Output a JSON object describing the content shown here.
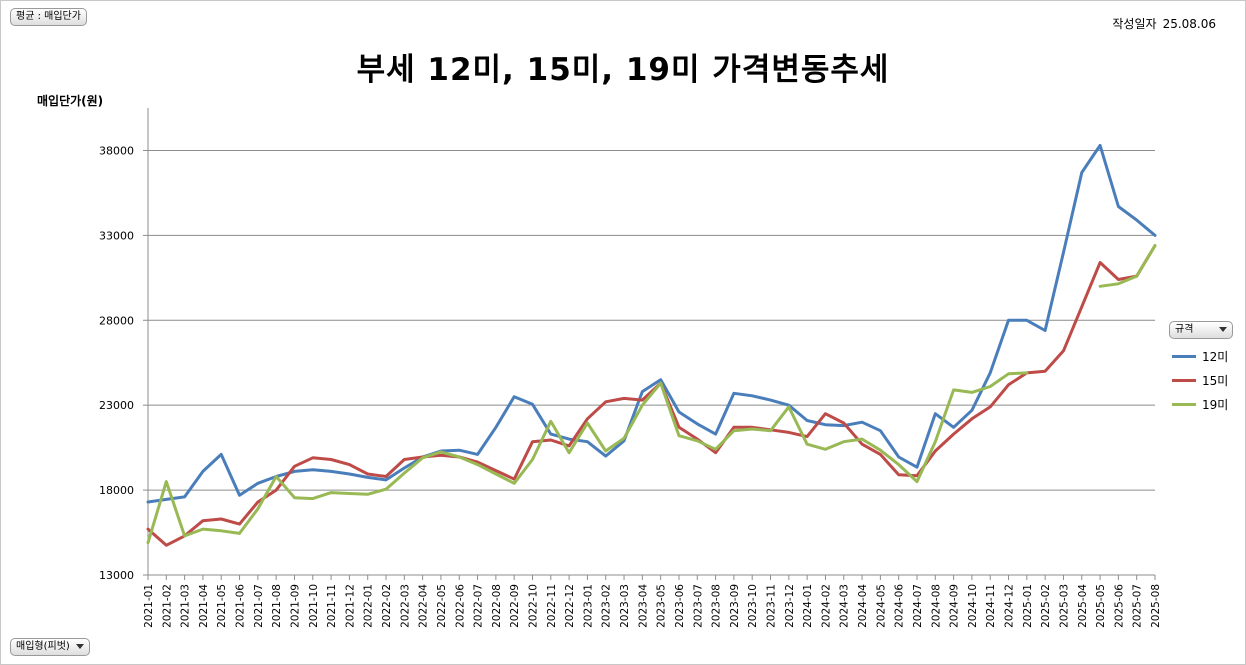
{
  "filter": {
    "label": "평균 : 매입단가"
  },
  "created": {
    "label": "작성일자",
    "date": "25.08.06"
  },
  "legend_filter": {
    "label": "규격"
  },
  "row_filter": {
    "label": "매입형(피벗)"
  },
  "chart_data": {
    "type": "line",
    "title": "부세 12미, 15미, 19미 가격변동추세",
    "ylabel": "매입단가(원)",
    "xlabel": "",
    "ylim": [
      13000,
      40500
    ],
    "yticks": [
      13000,
      18000,
      23000,
      28000,
      33000,
      38000
    ],
    "grid": true,
    "legend_position": "right",
    "categories": [
      "2021-01",
      "2021-02",
      "2021-03",
      "2021-04",
      "2021-05",
      "2021-06",
      "2021-07",
      "2021-08",
      "2021-09",
      "2021-10",
      "2021-11",
      "2021-12",
      "2022-01",
      "2022-02",
      "2022-03",
      "2022-04",
      "2022-05",
      "2022-06",
      "2022-07",
      "2022-08",
      "2022-09",
      "2022-10",
      "2022-11",
      "2022-12",
      "2023-01",
      "2023-02",
      "2023-03",
      "2023-04",
      "2023-05",
      "2023-06",
      "2023-07",
      "2023-08",
      "2023-09",
      "2023-10",
      "2023-11",
      "2023-12",
      "2024-01",
      "2024-02",
      "2024-03",
      "2024-04",
      "2024-05",
      "2024-06",
      "2024-07",
      "2024-08",
      "2024-09",
      "2024-10",
      "2024-11",
      "2024-12",
      "2025-01",
      "2025-02",
      "2025-03",
      "2025-04",
      "2025-05",
      "2025-06",
      "2025-07",
      "2025-08"
    ],
    "series": [
      {
        "name": "12미",
        "color": "#4a7ebb",
        "values": [
          17300,
          17450,
          17600,
          19100,
          20100,
          17700,
          18400,
          18800,
          19100,
          19200,
          19100,
          18950,
          18750,
          18600,
          19300,
          19950,
          20300,
          20350,
          20100,
          21700,
          23500,
          23050,
          21300,
          21000,
          20850,
          20000,
          20900,
          23800,
          24500,
          22600,
          21900,
          21300,
          23700,
          23550,
          23300,
          23000,
          22100,
          21850,
          21800,
          22000,
          21500,
          19950,
          19350,
          22500,
          21700,
          22700,
          24900,
          28000,
          28000,
          27400,
          32000,
          36700,
          38300,
          34700,
          33900,
          33000
        ]
      },
      {
        "name": "15미",
        "color": "#be4b48",
        "values": [
          15700,
          14750,
          15300,
          16200,
          16300,
          16000,
          17300,
          18000,
          19400,
          19900,
          19800,
          19500,
          18950,
          18800,
          19800,
          19950,
          20050,
          19950,
          19650,
          19150,
          18650,
          20850,
          20950,
          20600,
          22200,
          23200,
          23400,
          23300,
          24300,
          21700,
          21000,
          20200,
          21700,
          21700,
          21550,
          21400,
          21150,
          22500,
          21950,
          20700,
          20100,
          18900,
          18850,
          20300,
          21300,
          22200,
          22900,
          24200,
          24900,
          25000,
          26200,
          28800,
          31400,
          30400,
          30600,
          32400
        ]
      },
      {
        "name": "19미",
        "color": "#98b954",
        "values": [
          14900,
          18500,
          15300,
          15700,
          15600,
          15450,
          16900,
          18800,
          17550,
          17500,
          17850,
          17800,
          17750,
          18050,
          19000,
          19900,
          20250,
          19950,
          19500,
          18950,
          18400,
          19800,
          22050,
          20200,
          21950,
          20300,
          21050,
          23000,
          24300,
          21200,
          20900,
          20400,
          21500,
          21600,
          21500,
          22900,
          20700,
          20400,
          20850,
          21000,
          20350,
          19500,
          18500,
          20850,
          23900,
          23750,
          24100,
          24850,
          24900,
          null,
          null,
          null,
          30000,
          30150,
          30600,
          32400
        ]
      }
    ]
  }
}
